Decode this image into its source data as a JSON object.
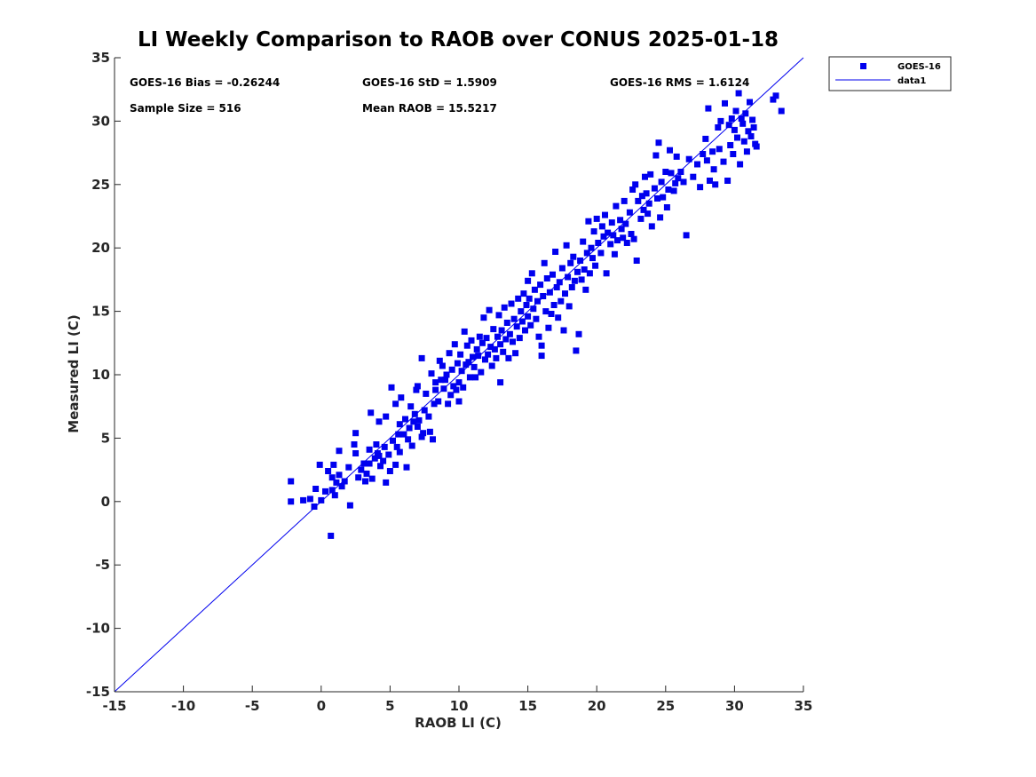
{
  "chart_data": {
    "type": "scatter",
    "title": "LI Weekly Comparison to RAOB over CONUS 2025-01-18",
    "xlabel": "RAOB LI (C)",
    "ylabel": "Measured LI (C)",
    "xlim": [
      -15,
      35
    ],
    "ylim": [
      -15,
      35
    ],
    "xticks": [
      -15,
      -10,
      -5,
      0,
      5,
      10,
      15,
      20,
      25,
      30,
      35
    ],
    "yticks": [
      -15,
      -10,
      -5,
      0,
      5,
      10,
      15,
      20,
      25,
      30,
      35
    ],
    "grid": false,
    "legend_position": "top-right-outside",
    "colors": {
      "series": "#0000ee",
      "line": "#0000ee",
      "axis": "#262626"
    },
    "annotations": [
      "GOES-16 Bias = -0.26244",
      "GOES-16 StD = 1.5909",
      "GOES-16 RMS = 1.6124",
      "Sample Size = 516",
      "Mean RAOB = 15.5217"
    ],
    "series": [
      {
        "name": "GOES-16",
        "kind": "scatter",
        "marker": "square",
        "points": [
          [
            -2.2,
            1.6
          ],
          [
            -2.2,
            0.0
          ],
          [
            -1.3,
            0.1
          ],
          [
            -0.8,
            0.2
          ],
          [
            -0.5,
            -0.4
          ],
          [
            -0.4,
            1.0
          ],
          [
            -0.1,
            2.9
          ],
          [
            0.0,
            0.1
          ],
          [
            0.3,
            0.8
          ],
          [
            0.5,
            2.4
          ],
          [
            0.7,
            -2.7
          ],
          [
            0.8,
            0.9
          ],
          [
            0.8,
            1.9
          ],
          [
            0.9,
            2.9
          ],
          [
            1.0,
            0.5
          ],
          [
            1.1,
            1.5
          ],
          [
            1.3,
            2.1
          ],
          [
            1.3,
            4.0
          ],
          [
            1.5,
            1.2
          ],
          [
            1.7,
            1.6
          ],
          [
            2.0,
            2.7
          ],
          [
            2.1,
            -0.3
          ],
          [
            2.4,
            4.5
          ],
          [
            2.5,
            5.4
          ],
          [
            2.5,
            3.8
          ],
          [
            2.7,
            1.9
          ],
          [
            2.9,
            2.5
          ],
          [
            3.1,
            3.0
          ],
          [
            3.2,
            1.6
          ],
          [
            3.3,
            2.2
          ],
          [
            3.5,
            4.1
          ],
          [
            3.5,
            3.0
          ],
          [
            3.6,
            7.0
          ],
          [
            3.7,
            1.8
          ],
          [
            3.9,
            3.4
          ],
          [
            4.0,
            4.5
          ],
          [
            4.1,
            3.8
          ],
          [
            4.2,
            3.6
          ],
          [
            4.2,
            6.3
          ],
          [
            4.3,
            2.8
          ],
          [
            4.5,
            3.2
          ],
          [
            4.6,
            4.3
          ],
          [
            4.7,
            1.5
          ],
          [
            4.7,
            6.7
          ],
          [
            4.9,
            3.7
          ],
          [
            5.0,
            2.4
          ],
          [
            5.1,
            9.0
          ],
          [
            5.2,
            4.8
          ],
          [
            5.4,
            2.9
          ],
          [
            5.4,
            7.7
          ],
          [
            5.5,
            4.3
          ],
          [
            5.6,
            5.3
          ],
          [
            5.7,
            6.1
          ],
          [
            5.7,
            3.9
          ],
          [
            5.8,
            8.2
          ],
          [
            6.0,
            5.3
          ],
          [
            6.1,
            6.5
          ],
          [
            6.2,
            2.7
          ],
          [
            6.3,
            4.9
          ],
          [
            6.4,
            5.8
          ],
          [
            6.5,
            7.5
          ],
          [
            6.6,
            4.4
          ],
          [
            6.7,
            6.3
          ],
          [
            6.8,
            6.9
          ],
          [
            6.9,
            8.8
          ],
          [
            7.0,
            9.1
          ],
          [
            7.0,
            5.9
          ],
          [
            7.1,
            6.4
          ],
          [
            7.3,
            11.3
          ],
          [
            7.3,
            5.1
          ],
          [
            7.4,
            5.4
          ],
          [
            7.5,
            7.2
          ],
          [
            7.6,
            8.5
          ],
          [
            7.8,
            6.7
          ],
          [
            7.9,
            5.5
          ],
          [
            8.0,
            10.1
          ],
          [
            8.1,
            4.9
          ],
          [
            8.2,
            7.7
          ],
          [
            8.3,
            9.4
          ],
          [
            8.3,
            8.8
          ],
          [
            8.5,
            7.9
          ],
          [
            8.6,
            11.1
          ],
          [
            8.7,
            9.6
          ],
          [
            8.8,
            10.7
          ],
          [
            8.9,
            8.9
          ],
          [
            9.0,
            9.6
          ],
          [
            9.1,
            10.0
          ],
          [
            9.2,
            7.7
          ],
          [
            9.3,
            11.7
          ],
          [
            9.4,
            8.4
          ],
          [
            9.5,
            10.4
          ],
          [
            9.6,
            9.1
          ],
          [
            9.7,
            12.4
          ],
          [
            9.8,
            8.8
          ],
          [
            9.9,
            10.9
          ],
          [
            10.0,
            9.4
          ],
          [
            10.0,
            7.9
          ],
          [
            10.1,
            11.6
          ],
          [
            10.2,
            10.3
          ],
          [
            10.3,
            9.0
          ],
          [
            10.4,
            13.4
          ],
          [
            10.5,
            10.8
          ],
          [
            10.6,
            12.3
          ],
          [
            10.7,
            11.0
          ],
          [
            10.8,
            9.8
          ],
          [
            10.9,
            12.7
          ],
          [
            11.0,
            11.4
          ],
          [
            11.1,
            10.6
          ],
          [
            11.2,
            9.8
          ],
          [
            11.3,
            12.0
          ],
          [
            11.4,
            11.5
          ],
          [
            11.5,
            13.0
          ],
          [
            11.6,
            10.2
          ],
          [
            11.7,
            12.5
          ],
          [
            11.8,
            14.5
          ],
          [
            11.9,
            11.2
          ],
          [
            12.0,
            12.9
          ],
          [
            12.1,
            11.6
          ],
          [
            12.2,
            15.1
          ],
          [
            12.3,
            12.2
          ],
          [
            12.4,
            10.7
          ],
          [
            12.5,
            13.6
          ],
          [
            12.6,
            12.0
          ],
          [
            12.7,
            11.3
          ],
          [
            12.8,
            13.0
          ],
          [
            12.9,
            14.7
          ],
          [
            13.0,
            12.4
          ],
          [
            13.0,
            9.4
          ],
          [
            13.1,
            13.5
          ],
          [
            13.2,
            11.8
          ],
          [
            13.3,
            15.3
          ],
          [
            13.4,
            12.8
          ],
          [
            13.5,
            14.1
          ],
          [
            13.6,
            11.3
          ],
          [
            13.7,
            13.2
          ],
          [
            13.8,
            15.6
          ],
          [
            13.9,
            12.6
          ],
          [
            14.0,
            14.4
          ],
          [
            14.1,
            11.7
          ],
          [
            14.2,
            13.8
          ],
          [
            14.3,
            16.0
          ],
          [
            14.4,
            12.9
          ],
          [
            14.5,
            15.0
          ],
          [
            14.6,
            14.2
          ],
          [
            14.7,
            16.4
          ],
          [
            14.8,
            13.5
          ],
          [
            14.9,
            15.5
          ],
          [
            15.0,
            14.6
          ],
          [
            15.0,
            17.4
          ],
          [
            15.1,
            16.0
          ],
          [
            15.2,
            13.9
          ],
          [
            15.3,
            18.0
          ],
          [
            15.4,
            15.2
          ],
          [
            15.5,
            16.7
          ],
          [
            15.6,
            14.4
          ],
          [
            15.7,
            15.8
          ],
          [
            15.8,
            13.0
          ],
          [
            15.9,
            17.1
          ],
          [
            16.0,
            12.3
          ],
          [
            16.0,
            11.5
          ],
          [
            16.1,
            16.2
          ],
          [
            16.2,
            18.8
          ],
          [
            16.3,
            15.0
          ],
          [
            16.4,
            17.6
          ],
          [
            16.5,
            13.7
          ],
          [
            16.6,
            16.5
          ],
          [
            16.7,
            14.8
          ],
          [
            16.8,
            17.9
          ],
          [
            16.9,
            15.5
          ],
          [
            17.0,
            19.7
          ],
          [
            17.1,
            16.9
          ],
          [
            17.2,
            14.5
          ],
          [
            17.3,
            17.3
          ],
          [
            17.4,
            15.8
          ],
          [
            17.5,
            18.4
          ],
          [
            17.6,
            13.5
          ],
          [
            17.7,
            16.4
          ],
          [
            17.8,
            20.2
          ],
          [
            17.9,
            17.7
          ],
          [
            18.0,
            15.4
          ],
          [
            18.1,
            18.8
          ],
          [
            18.2,
            16.9
          ],
          [
            18.3,
            19.3
          ],
          [
            18.4,
            17.4
          ],
          [
            18.5,
            11.9
          ],
          [
            18.6,
            18.1
          ],
          [
            18.7,
            13.2
          ],
          [
            18.8,
            19.0
          ],
          [
            18.9,
            17.5
          ],
          [
            19.0,
            20.5
          ],
          [
            19.1,
            18.3
          ],
          [
            19.2,
            16.7
          ],
          [
            19.3,
            19.6
          ],
          [
            19.4,
            22.1
          ],
          [
            19.5,
            18.0
          ],
          [
            19.6,
            20.0
          ],
          [
            19.7,
            19.2
          ],
          [
            19.8,
            21.3
          ],
          [
            19.9,
            18.6
          ],
          [
            20.0,
            22.3
          ],
          [
            20.1,
            20.4
          ],
          [
            20.3,
            19.6
          ],
          [
            20.4,
            21.7
          ],
          [
            20.5,
            20.9
          ],
          [
            20.6,
            22.6
          ],
          [
            20.7,
            18.0
          ],
          [
            20.8,
            21.2
          ],
          [
            21.0,
            20.3
          ],
          [
            21.1,
            22.0
          ],
          [
            21.2,
            21.0
          ],
          [
            21.3,
            19.5
          ],
          [
            21.4,
            23.3
          ],
          [
            21.5,
            20.6
          ],
          [
            21.7,
            22.2
          ],
          [
            21.8,
            21.5
          ],
          [
            21.9,
            20.8
          ],
          [
            22.0,
            23.7
          ],
          [
            22.1,
            21.9
          ],
          [
            22.2,
            20.4
          ],
          [
            22.4,
            22.8
          ],
          [
            22.5,
            21.1
          ],
          [
            22.6,
            24.6
          ],
          [
            22.7,
            20.7
          ],
          [
            22.8,
            25.0
          ],
          [
            22.9,
            19.0
          ],
          [
            23.0,
            23.7
          ],
          [
            23.2,
            22.3
          ],
          [
            23.3,
            24.1
          ],
          [
            23.4,
            23.0
          ],
          [
            23.5,
            25.6
          ],
          [
            23.6,
            24.3
          ],
          [
            23.7,
            22.7
          ],
          [
            23.8,
            23.5
          ],
          [
            23.9,
            25.8
          ],
          [
            24.0,
            21.7
          ],
          [
            24.2,
            24.7
          ],
          [
            24.3,
            27.3
          ],
          [
            24.4,
            23.9
          ],
          [
            24.5,
            28.3
          ],
          [
            24.6,
            22.4
          ],
          [
            24.7,
            25.2
          ],
          [
            24.8,
            24.0
          ],
          [
            25.0,
            26.0
          ],
          [
            25.1,
            23.2
          ],
          [
            25.2,
            24.6
          ],
          [
            25.3,
            27.7
          ],
          [
            25.4,
            25.9
          ],
          [
            25.6,
            24.5
          ],
          [
            25.7,
            25.1
          ],
          [
            25.8,
            27.2
          ],
          [
            25.9,
            25.5
          ],
          [
            26.1,
            26.0
          ],
          [
            26.3,
            25.2
          ],
          [
            26.5,
            21.0
          ],
          [
            26.7,
            27.0
          ],
          [
            27.0,
            25.6
          ],
          [
            27.3,
            26.6
          ],
          [
            27.5,
            24.8
          ],
          [
            27.7,
            27.4
          ],
          [
            27.9,
            28.6
          ],
          [
            28.0,
            26.9
          ],
          [
            28.1,
            31.0
          ],
          [
            28.2,
            25.3
          ],
          [
            28.4,
            27.6
          ],
          [
            28.5,
            26.2
          ],
          [
            28.6,
            25.0
          ],
          [
            28.8,
            29.5
          ],
          [
            28.9,
            27.8
          ],
          [
            29.0,
            30.0
          ],
          [
            29.2,
            26.8
          ],
          [
            29.3,
            31.4
          ],
          [
            29.5,
            25.3
          ],
          [
            29.6,
            29.7
          ],
          [
            29.7,
            28.1
          ],
          [
            29.8,
            30.2
          ],
          [
            29.9,
            27.4
          ],
          [
            30.0,
            29.3
          ],
          [
            30.1,
            30.8
          ],
          [
            30.2,
            28.7
          ],
          [
            30.3,
            32.2
          ],
          [
            30.4,
            26.6
          ],
          [
            30.5,
            30.2
          ],
          [
            30.6,
            29.8
          ],
          [
            30.7,
            28.4
          ],
          [
            30.8,
            30.6
          ],
          [
            30.9,
            27.6
          ],
          [
            31.0,
            29.2
          ],
          [
            31.1,
            31.5
          ],
          [
            31.2,
            28.8
          ],
          [
            31.3,
            30.1
          ],
          [
            31.4,
            29.5
          ],
          [
            31.5,
            28.2
          ],
          [
            31.6,
            28.0
          ],
          [
            32.8,
            31.7
          ],
          [
            33.0,
            32.0
          ],
          [
            33.4,
            30.8
          ]
        ]
      },
      {
        "name": "data1",
        "kind": "line",
        "points": [
          [
            -15,
            -15
          ],
          [
            35,
            35
          ]
        ]
      }
    ]
  }
}
